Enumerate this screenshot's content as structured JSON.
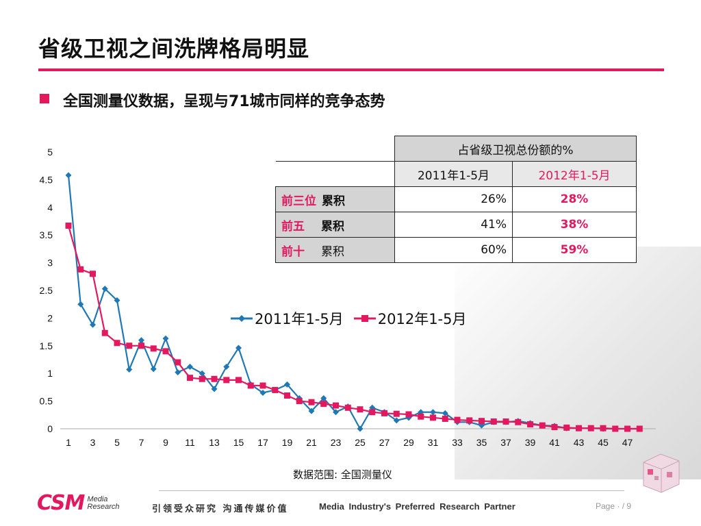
{
  "title": "省级卫视之间洗牌格局明显",
  "subtitle": "全国测量仪数据，呈现与71城市同样的竞争态势",
  "table": {
    "header": "占省级卫视总份额的%",
    "col1": "2011年1-5月",
    "col2": "2012年1-5月",
    "rows": [
      {
        "rank": "前三位",
        "cum": "累积",
        "v1": "26%",
        "v2": "28%"
      },
      {
        "rank": "前五",
        "cum": "累积",
        "v1": "41%",
        "v2": "38%"
      },
      {
        "rank": "前十",
        "cum": "累积",
        "v1": "60%",
        "v2": "59%"
      }
    ]
  },
  "chart_data": {
    "type": "line",
    "title": "",
    "xlabel": "",
    "ylabel": "",
    "x": [
      1,
      2,
      3,
      4,
      5,
      6,
      7,
      8,
      9,
      10,
      11,
      12,
      13,
      14,
      15,
      16,
      17,
      18,
      19,
      20,
      21,
      22,
      23,
      24,
      25,
      26,
      27,
      28,
      29,
      30,
      31,
      32,
      33,
      34,
      35,
      36,
      37,
      38,
      39,
      40,
      41,
      42,
      43,
      44,
      45,
      46,
      47,
      48
    ],
    "x_tick_labels": [
      "1",
      "3",
      "5",
      "7",
      "9",
      "11",
      "13",
      "15",
      "17",
      "19",
      "21",
      "23",
      "25",
      "27",
      "29",
      "31",
      "33",
      "35",
      "37",
      "39",
      "41",
      "43",
      "45",
      "47"
    ],
    "y_tick_labels": [
      "0",
      "0.5",
      "1",
      "1.5",
      "2",
      "2.5",
      "3",
      "3.5",
      "4",
      "4.5",
      "5"
    ],
    "ylim": [
      0,
      5
    ],
    "grid": false,
    "legend_position": "middle",
    "series": [
      {
        "name": "2011年1-5月",
        "color": "#1f77b4",
        "marker": "diamond",
        "values": [
          4.58,
          2.25,
          1.88,
          2.53,
          2.32,
          1.07,
          1.6,
          1.08,
          1.63,
          1.02,
          1.12,
          1.0,
          0.72,
          1.12,
          1.46,
          0.8,
          0.65,
          0.7,
          0.8,
          0.55,
          0.32,
          0.55,
          0.3,
          0.4,
          0.0,
          0.38,
          0.3,
          0.15,
          0.2,
          0.3,
          0.3,
          0.28,
          0.12,
          0.12,
          0.06,
          0.12,
          0.12,
          0.14,
          0.1,
          0.06,
          0.05,
          0.01,
          0.01,
          0.01,
          0.0,
          0.0,
          0.0,
          0.0
        ]
      },
      {
        "name": "2012年1-5月",
        "color": "#e2195f",
        "marker": "square",
        "values": [
          3.67,
          2.88,
          2.8,
          1.73,
          1.55,
          1.5,
          1.5,
          1.45,
          1.4,
          1.2,
          0.92,
          0.9,
          0.9,
          0.88,
          0.88,
          0.78,
          0.78,
          0.7,
          0.6,
          0.5,
          0.48,
          0.45,
          0.42,
          0.38,
          0.35,
          0.3,
          0.28,
          0.27,
          0.26,
          0.22,
          0.2,
          0.18,
          0.16,
          0.15,
          0.14,
          0.13,
          0.13,
          0.12,
          0.08,
          0.06,
          0.03,
          0.02,
          0.01,
          0.01,
          0.01,
          0.0,
          0.0,
          0.0
        ]
      }
    ]
  },
  "source": "数据范围: 全国测量仪",
  "footer": {
    "logo": "CSM",
    "logo_sub1": "Media",
    "logo_sub2": "Research",
    "slogan_cn": "引领受众研究  沟通传媒价值",
    "slogan_en": "Media Industry's Preferred Research Partner",
    "page": "Page · / 9"
  }
}
